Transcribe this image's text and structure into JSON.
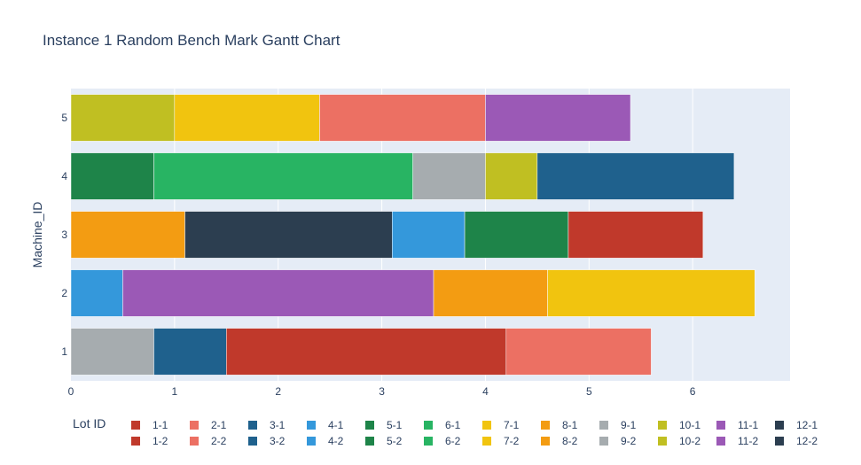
{
  "chart_data": {
    "type": "bar",
    "orientation": "horizontal",
    "title": "Instance 1 Random Bench Mark Gantt Chart",
    "xlabel": "",
    "ylabel": "Machine_ID",
    "xlim": [
      0,
      6.94
    ],
    "xticks": [
      0,
      1,
      2,
      3,
      4,
      5,
      6
    ],
    "yticks": [
      "1",
      "2",
      "3",
      "4",
      "5"
    ],
    "grid": true,
    "legend_title": "Lot ID",
    "legend_placement": "bottom",
    "colors": {
      "1": "#c0392b",
      "2": "#ec7063",
      "3": "#1f618d",
      "4": "#3498db",
      "5": "#1e8449",
      "6": "#28b463",
      "7": "#f1c40f",
      "8": "#f39c12",
      "9": "#a6acaf",
      "10": "#c0bf22",
      "11": "#9b59b6",
      "12": "#2c3e50"
    },
    "legend": [
      [
        "1-1",
        "1"
      ],
      [
        "2-1",
        "2"
      ],
      [
        "3-1",
        "3"
      ],
      [
        "4-1",
        "4"
      ],
      [
        "5-1",
        "5"
      ],
      [
        "6-1",
        "6"
      ],
      [
        "7-1",
        "7"
      ],
      [
        "8-1",
        "8"
      ],
      [
        "9-1",
        "9"
      ],
      [
        "10-1",
        "10"
      ],
      [
        "11-1",
        "11"
      ],
      [
        "12-1",
        "12"
      ],
      [
        "1-2",
        "1"
      ],
      [
        "2-2",
        "2"
      ],
      [
        "3-2",
        "3"
      ],
      [
        "4-2",
        "4"
      ],
      [
        "5-2",
        "5"
      ],
      [
        "6-2",
        "6"
      ],
      [
        "7-2",
        "7"
      ],
      [
        "8-2",
        "8"
      ],
      [
        "9-2",
        "9"
      ],
      [
        "10-2",
        "10"
      ],
      [
        "11-2",
        "11"
      ],
      [
        "12-2",
        "12"
      ]
    ],
    "tasks": [
      {
        "machine": "1",
        "lot": "9",
        "start": 0,
        "end": 0.8
      },
      {
        "machine": "1",
        "lot": "3",
        "start": 0.8,
        "end": 1.5
      },
      {
        "machine": "1",
        "lot": "1",
        "start": 1.5,
        "end": 4.2
      },
      {
        "machine": "1",
        "lot": "2",
        "start": 4.2,
        "end": 5.6
      },
      {
        "machine": "2",
        "lot": "4",
        "start": 0,
        "end": 0.5
      },
      {
        "machine": "2",
        "lot": "11",
        "start": 0.5,
        "end": 3.5
      },
      {
        "machine": "2",
        "lot": "8",
        "start": 3.5,
        "end": 4.6
      },
      {
        "machine": "2",
        "lot": "7",
        "start": 4.6,
        "end": 6.6
      },
      {
        "machine": "3",
        "lot": "8",
        "start": 0,
        "end": 1.1
      },
      {
        "machine": "3",
        "lot": "12",
        "start": 1.1,
        "end": 3.1
      },
      {
        "machine": "3",
        "lot": "4",
        "start": 3.1,
        "end": 3.8
      },
      {
        "machine": "3",
        "lot": "5",
        "start": 3.8,
        "end": 4.8
      },
      {
        "machine": "3",
        "lot": "1",
        "start": 4.8,
        "end": 6.1
      },
      {
        "machine": "4",
        "lot": "5",
        "start": 0,
        "end": 0.8
      },
      {
        "machine": "4",
        "lot": "6",
        "start": 0.8,
        "end": 3.3
      },
      {
        "machine": "4",
        "lot": "9",
        "start": 3.3,
        "end": 4.0
      },
      {
        "machine": "4",
        "lot": "10",
        "start": 4.0,
        "end": 4.5
      },
      {
        "machine": "4",
        "lot": "3",
        "start": 4.5,
        "end": 6.4
      },
      {
        "machine": "5",
        "lot": "10",
        "start": 0,
        "end": 1.0
      },
      {
        "machine": "5",
        "lot": "7",
        "start": 1.0,
        "end": 2.4
      },
      {
        "machine": "5",
        "lot": "2",
        "start": 2.4,
        "end": 4.0
      },
      {
        "machine": "5",
        "lot": "11",
        "start": 4.0,
        "end": 5.4
      }
    ]
  }
}
